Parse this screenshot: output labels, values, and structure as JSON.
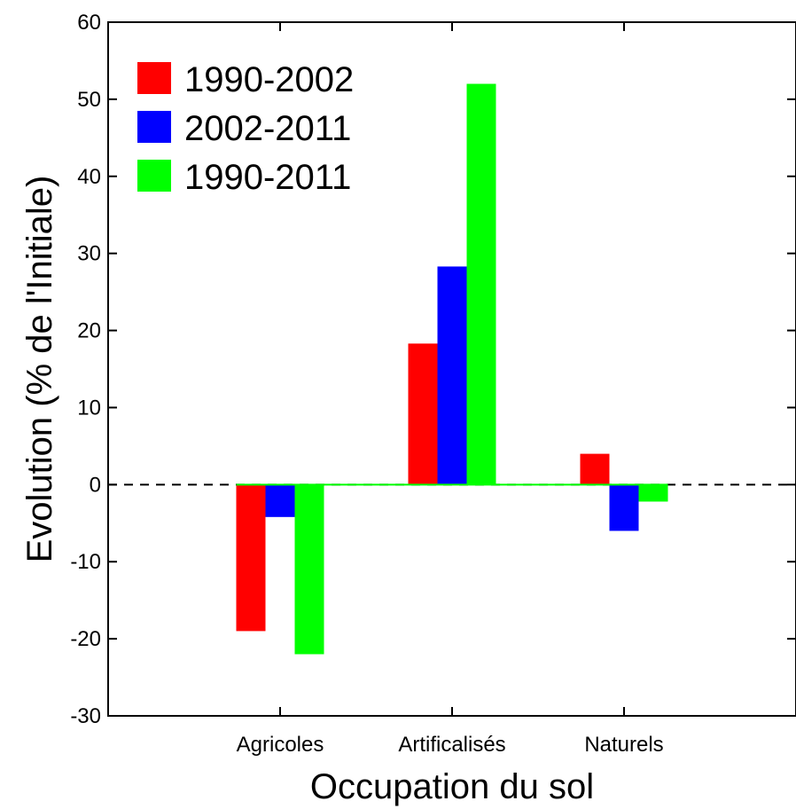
{
  "chart_data": {
    "type": "bar",
    "title": "",
    "xlabel": "Occupation du sol",
    "ylabel": "Evolution (% de l'Initiale)",
    "categories": [
      "Agricoles",
      "Artificalisés",
      "Naturels"
    ],
    "series": [
      {
        "name": "1990-2002",
        "color": "#ff0000",
        "values": [
          -19,
          18.3,
          4.0
        ]
      },
      {
        "name": "2002-2011",
        "color": "#0000ff",
        "values": [
          -4.2,
          28.3,
          -6.0
        ]
      },
      {
        "name": "1990-2011",
        "color": "#00ff00",
        "values": [
          -22,
          52,
          -2.2
        ]
      }
    ],
    "ylim": [
      -30,
      60
    ],
    "yticks": [
      -30,
      -20,
      -10,
      0,
      10,
      20,
      30,
      40,
      50,
      60
    ],
    "zero_line": "dashed",
    "legend_position": "top-left",
    "grid": false
  }
}
